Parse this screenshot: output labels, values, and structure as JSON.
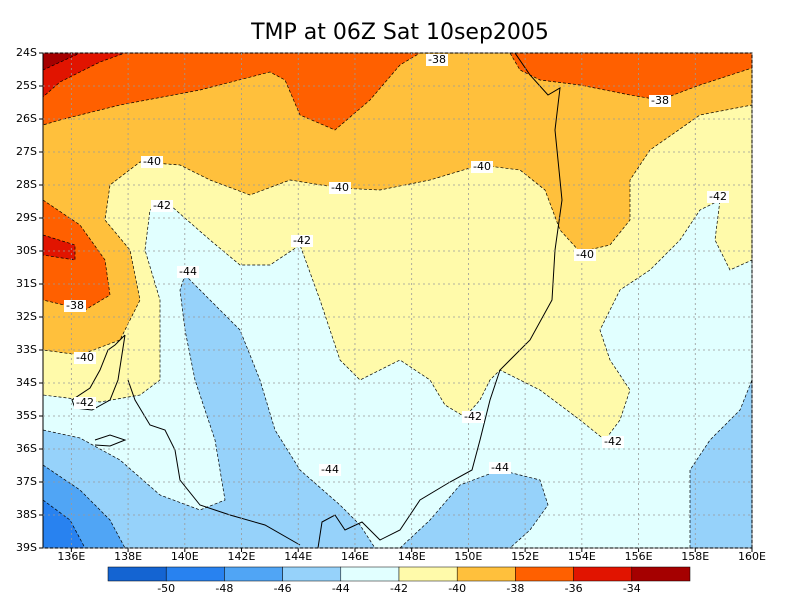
{
  "chart_data": {
    "type": "contour",
    "title": "TMP at 06Z Sat 10sep2005",
    "xlim": [
      135,
      160
    ],
    "ylim": [
      -39,
      -24
    ],
    "xticks": [
      {
        "value": 136,
        "label": "136E"
      },
      {
        "value": 138,
        "label": "138E"
      },
      {
        "value": 140,
        "label": "140E"
      },
      {
        "value": 142,
        "label": "142E"
      },
      {
        "value": 144,
        "label": "144E"
      },
      {
        "value": 146,
        "label": "146E"
      },
      {
        "value": 148,
        "label": "148E"
      },
      {
        "value": 150,
        "label": "150E"
      },
      {
        "value": 152,
        "label": "152E"
      },
      {
        "value": 154,
        "label": "154E"
      },
      {
        "value": 156,
        "label": "156E"
      },
      {
        "value": 158,
        "label": "158E"
      },
      {
        "value": 160,
        "label": "160E"
      }
    ],
    "yticks": [
      {
        "value": -24,
        "label": "24S"
      },
      {
        "value": -25,
        "label": "25S"
      },
      {
        "value": -26,
        "label": "26S"
      },
      {
        "value": -27,
        "label": "27S"
      },
      {
        "value": -28,
        "label": "28S"
      },
      {
        "value": -29,
        "label": "29S"
      },
      {
        "value": -30,
        "label": "30S"
      },
      {
        "value": -31,
        "label": "31S"
      },
      {
        "value": -32,
        "label": "32S"
      },
      {
        "value": -33,
        "label": "33S"
      },
      {
        "value": -34,
        "label": "34S"
      },
      {
        "value": -35,
        "label": "35S"
      },
      {
        "value": -36,
        "label": "36S"
      },
      {
        "value": -37,
        "label": "37S"
      },
      {
        "value": -38,
        "label": "38S"
      },
      {
        "value": -39,
        "label": "39S"
      }
    ],
    "grid": true,
    "colorbar": {
      "levels": [
        -50,
        -48,
        -46,
        -44,
        -42,
        -40,
        -38,
        -36,
        -34
      ],
      "colors": [
        "#1464d2",
        "#2882f0",
        "#50a5f5",
        "#96d2fa",
        "#e1ffff",
        "#fffaaa",
        "#ffc03c",
        "#ff6000",
        "#e11400",
        "#a50000"
      ]
    },
    "contour_labels": [
      -38,
      -38,
      -40,
      -40,
      -40,
      -42,
      -42,
      -42,
      -40,
      -44,
      -38,
      -40,
      -42,
      -42,
      -42,
      -44,
      -44
    ]
  }
}
